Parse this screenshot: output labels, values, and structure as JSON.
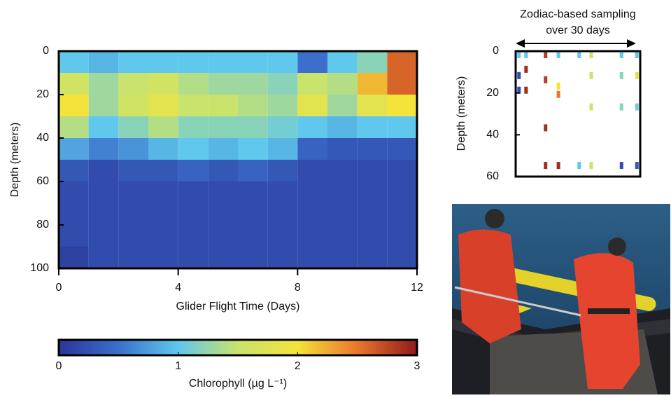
{
  "chart_data": [
    {
      "type": "heatmap",
      "xlabel": "Glider Flight Time (Days)",
      "ylabel": "Depth (meters)",
      "xlim": [
        0,
        12
      ],
      "xticks": [
        0,
        4,
        8,
        12
      ],
      "ylim": [
        100,
        0
      ],
      "yticks": [
        0,
        20,
        40,
        60,
        80,
        100
      ],
      "xbins": [
        0,
        1,
        2,
        3,
        4,
        5,
        6,
        7,
        8,
        9,
        10,
        11,
        12
      ],
      "ybins": [
        0,
        10,
        20,
        30,
        40,
        50,
        60,
        70,
        80,
        90,
        100
      ],
      "values": [
        [
          1.0,
          1.6,
          2.0,
          1.4,
          0.8,
          0.3,
          0.2,
          0.2,
          0.2,
          0.1
        ],
        [
          0.9,
          1.3,
          1.3,
          1.0,
          0.6,
          0.2,
          0.2,
          0.2,
          0.2,
          0.2
        ],
        [
          1.0,
          1.5,
          1.6,
          1.2,
          0.7,
          0.3,
          0.2,
          0.2,
          0.2,
          0.2
        ],
        [
          1.0,
          1.6,
          1.8,
          1.4,
          0.9,
          0.3,
          0.2,
          0.2,
          0.2,
          0.2
        ],
        [
          1.0,
          1.4,
          1.5,
          1.2,
          1.0,
          0.4,
          0.2,
          0.2,
          0.2,
          0.2
        ],
        [
          1.0,
          1.3,
          1.5,
          1.2,
          0.9,
          0.3,
          0.2,
          0.2,
          0.2,
          0.2
        ],
        [
          1.0,
          1.3,
          1.4,
          1.2,
          1.0,
          0.4,
          0.2,
          0.2,
          0.2,
          0.2
        ],
        [
          1.0,
          1.2,
          1.3,
          1.1,
          0.9,
          0.3,
          0.2,
          0.2,
          0.2,
          0.2
        ],
        [
          0.5,
          1.5,
          1.8,
          1.0,
          0.4,
          0.2,
          0.2,
          0.2,
          0.2,
          0.2
        ],
        [
          1.0,
          1.4,
          1.3,
          0.9,
          0.3,
          0.2,
          0.2,
          0.2,
          0.2,
          0.2
        ],
        [
          1.2,
          2.2,
          1.8,
          1.0,
          0.3,
          0.2,
          0.2,
          0.2,
          0.2,
          0.2
        ],
        [
          2.6,
          2.6,
          2.0,
          1.0,
          0.3,
          0.2,
          0.2,
          0.2,
          0.2,
          0.2
        ]
      ],
      "colorbar": {
        "label": "Chlorophyll (µg L⁻¹)",
        "lim": [
          0,
          3
        ],
        "ticks": [
          0,
          1,
          2,
          3
        ],
        "colors": [
          "#2a3597",
          "#3b6fcb",
          "#5fc8ec",
          "#c9e36c",
          "#f3e33a",
          "#e9762b",
          "#8e1b1b"
        ]
      }
    },
    {
      "type": "samples",
      "title": [
        "Zodiac-based sampling",
        "over 30 days"
      ],
      "ylabel": "Depth (meters)",
      "xlim": [
        0,
        30
      ],
      "ylim": [
        60,
        0
      ],
      "yticks": [
        0,
        20,
        40,
        60
      ],
      "x": [
        0.8,
        0.8,
        0.8,
        2.5,
        2.5,
        2.5,
        7.2,
        7.2,
        7.2,
        7.2,
        10.3,
        10.3,
        10.3,
        10.3,
        15.3,
        15.3,
        18.2,
        18.2,
        18.2,
        18.2,
        25.5,
        25.5,
        25.5,
        25.5,
        29.2,
        29.2,
        29.2,
        29.2
      ],
      "y": [
        0,
        10,
        17,
        0,
        7,
        17,
        0,
        12,
        35,
        53,
        0,
        15,
        19,
        53,
        0,
        53,
        0,
        10,
        25,
        53,
        0,
        10,
        25,
        53,
        0,
        10,
        25,
        53
      ],
      "values": [
        1.0,
        0.2,
        0.2,
        1.0,
        2.9,
        2.9,
        2.8,
        2.8,
        2.9,
        2.9,
        1.0,
        2.0,
        2.5,
        2.9,
        1.0,
        1.0,
        1.5,
        1.5,
        1.5,
        1.5,
        1.0,
        1.2,
        1.2,
        0.2,
        1.0,
        1.8,
        1.1,
        0.3
      ]
    }
  ]
}
